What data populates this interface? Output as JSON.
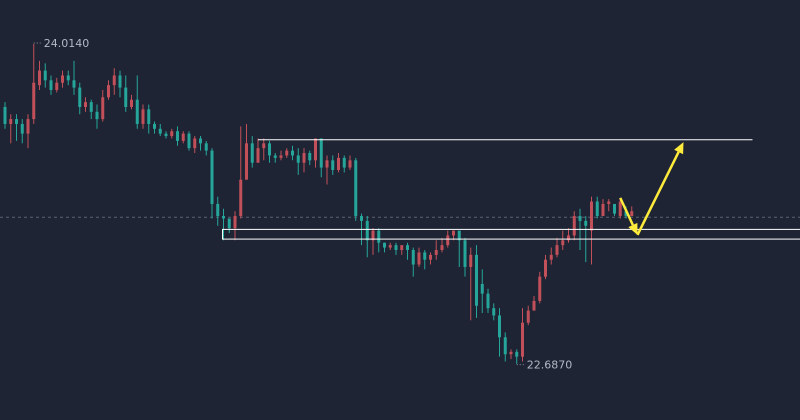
{
  "chart_data": {
    "type": "candlestick",
    "title": "",
    "xlabel": "",
    "ylabel": "",
    "ylim": [
      22.5,
      24.15
    ],
    "grid": false,
    "colors": {
      "up": "#c2505a",
      "down": "#26a69a",
      "background": "#1e2433",
      "annotation": "#ffeb3b",
      "line": "#ffffff"
    },
    "high_label": {
      "text": "24.0140",
      "index": 5,
      "value": 24.014
    },
    "low_label": {
      "text": "22.6870",
      "index": 89,
      "value": 22.687
    },
    "reference_line": {
      "value": 23.295,
      "style": "dashed"
    },
    "resistance_line": {
      "value": 23.615,
      "from_index": 44,
      "to_index": 130
    },
    "support_zone": {
      "low": 23.205,
      "high": 23.245,
      "from_index": 38
    },
    "annotation_arrows": [
      {
        "from": [
          107,
          23.375
        ],
        "to": [
          110,
          23.222
        ]
      },
      {
        "from": [
          110,
          23.222
        ],
        "to": [
          118,
          23.605
        ]
      }
    ],
    "candles": [
      [
        23.75,
        23.68,
        23.77,
        23.66
      ],
      [
        23.68,
        23.7,
        23.72,
        23.6
      ],
      [
        23.7,
        23.68,
        23.72,
        23.61
      ],
      [
        23.68,
        23.64,
        23.7,
        23.6
      ],
      [
        23.64,
        23.7,
        23.72,
        23.58
      ],
      [
        23.7,
        23.85,
        24.01,
        23.68
      ],
      [
        23.84,
        23.9,
        23.94,
        23.82
      ],
      [
        23.9,
        23.86,
        23.93,
        23.83
      ],
      [
        23.86,
        23.82,
        23.88,
        23.8
      ],
      [
        23.82,
        23.85,
        23.87,
        23.81
      ],
      [
        23.85,
        23.88,
        23.9,
        23.83
      ],
      [
        23.88,
        23.86,
        23.9,
        23.84
      ],
      [
        23.86,
        23.83,
        23.94,
        23.8
      ],
      [
        23.83,
        23.75,
        23.85,
        23.72
      ],
      [
        23.75,
        23.77,
        23.79,
        23.73
      ],
      [
        23.77,
        23.73,
        23.78,
        23.7
      ],
      [
        23.73,
        23.7,
        23.76,
        23.66
      ],
      [
        23.7,
        23.79,
        23.82,
        23.69
      ],
      [
        23.79,
        23.84,
        23.86,
        23.78
      ],
      [
        23.84,
        23.88,
        23.91,
        23.8
      ],
      [
        23.88,
        23.83,
        23.9,
        23.79
      ],
      [
        23.83,
        23.75,
        23.88,
        23.73
      ],
      [
        23.75,
        23.78,
        23.8,
        23.74
      ],
      [
        23.78,
        23.68,
        23.88,
        23.66
      ],
      [
        23.68,
        23.74,
        23.76,
        23.66
      ],
      [
        23.74,
        23.68,
        23.76,
        23.64
      ],
      [
        23.68,
        23.66,
        23.69,
        23.64
      ],
      [
        23.66,
        23.64,
        23.68,
        23.63
      ],
      [
        23.64,
        23.63,
        23.65,
        23.62
      ],
      [
        23.63,
        23.65,
        23.66,
        23.62
      ],
      [
        23.65,
        23.61,
        23.67,
        23.59
      ],
      [
        23.61,
        23.64,
        23.65,
        23.6
      ],
      [
        23.64,
        23.58,
        23.65,
        23.57
      ],
      [
        23.58,
        23.62,
        23.63,
        23.56
      ],
      [
        23.62,
        23.6,
        23.63,
        23.57
      ],
      [
        23.6,
        23.57,
        23.61,
        23.55
      ],
      [
        23.57,
        23.35,
        23.58,
        23.29
      ],
      [
        23.35,
        23.3,
        23.38,
        23.26
      ],
      [
        23.3,
        23.29,
        23.33,
        23.2
      ],
      [
        23.29,
        23.25,
        23.29,
        23.23
      ],
      [
        23.25,
        23.3,
        23.32,
        23.2
      ],
      [
        23.3,
        23.45,
        23.67,
        23.29
      ],
      [
        23.45,
        23.6,
        23.68,
        23.5
      ],
      [
        23.6,
        23.52,
        23.63,
        23.5
      ],
      [
        23.52,
        23.58,
        23.62,
        23.52
      ],
      [
        23.58,
        23.6,
        23.62,
        23.53
      ],
      [
        23.6,
        23.55,
        23.61,
        23.52
      ],
      [
        23.55,
        23.54,
        23.56,
        23.52
      ],
      [
        23.54,
        23.55,
        23.57,
        23.53
      ],
      [
        23.55,
        23.57,
        23.58,
        23.54
      ],
      [
        23.57,
        23.55,
        23.59,
        23.53
      ],
      [
        23.55,
        23.52,
        23.58,
        23.47
      ],
      [
        23.52,
        23.56,
        23.58,
        23.48
      ],
      [
        23.56,
        23.53,
        23.57,
        23.51
      ],
      [
        23.53,
        23.62,
        23.62,
        23.5
      ],
      [
        23.62,
        23.5,
        23.62,
        23.46
      ],
      [
        23.5,
        23.53,
        23.55,
        23.43
      ],
      [
        23.53,
        23.49,
        23.55,
        23.47
      ],
      [
        23.49,
        23.54,
        23.56,
        23.48
      ],
      [
        23.54,
        23.5,
        23.55,
        23.48
      ],
      [
        23.5,
        23.53,
        23.55,
        23.49
      ],
      [
        23.53,
        23.3,
        23.54,
        23.28
      ],
      [
        23.3,
        23.28,
        23.31,
        23.18
      ],
      [
        23.28,
        23.2,
        23.3,
        23.13
      ],
      [
        23.2,
        23.24,
        23.25,
        23.14
      ],
      [
        23.24,
        23.19,
        23.25,
        23.15
      ],
      [
        23.19,
        23.17,
        23.19,
        23.15
      ],
      [
        23.17,
        23.18,
        23.19,
        23.16
      ],
      [
        23.18,
        23.16,
        23.19,
        23.14
      ],
      [
        23.16,
        23.18,
        23.18,
        23.14
      ],
      [
        23.18,
        23.16,
        23.19,
        23.12
      ],
      [
        23.16,
        23.1,
        23.17,
        23.05
      ],
      [
        23.1,
        23.15,
        23.17,
        23.09
      ],
      [
        23.15,
        23.12,
        23.16,
        23.08
      ],
      [
        23.12,
        23.14,
        23.15,
        23.1
      ],
      [
        23.14,
        23.16,
        23.2,
        23.12
      ],
      [
        23.16,
        23.18,
        23.21,
        23.15
      ],
      [
        23.18,
        23.22,
        23.24,
        23.17
      ],
      [
        23.22,
        23.24,
        23.24,
        23.2
      ],
      [
        23.24,
        23.2,
        23.23,
        23.09
      ],
      [
        23.2,
        23.09,
        23.21,
        23.05
      ],
      [
        23.09,
        23.14,
        23.17,
        22.87
      ],
      [
        23.14,
        22.93,
        23.18,
        22.88
      ],
      [
        23.02,
        22.98,
        23.08,
        22.9
      ],
      [
        22.98,
        22.92,
        23.0,
        22.9
      ],
      [
        22.92,
        22.89,
        22.94,
        22.87
      ],
      [
        22.89,
        22.8,
        22.92,
        22.72
      ],
      [
        22.8,
        22.73,
        22.82,
        22.7
      ],
      [
        22.73,
        22.74,
        22.75,
        22.71
      ],
      [
        22.74,
        22.72,
        22.75,
        22.69
      ],
      [
        22.72,
        22.86,
        22.92,
        22.7
      ],
      [
        22.86,
        22.91,
        22.93,
        22.85
      ],
      [
        22.91,
        22.95,
        22.97,
        22.92
      ],
      [
        22.95,
        23.05,
        23.07,
        22.94
      ],
      [
        23.05,
        23.12,
        23.14,
        23.04
      ],
      [
        23.12,
        23.14,
        23.17,
        23.1
      ],
      [
        23.14,
        23.18,
        23.21,
        23.13
      ],
      [
        23.18,
        23.2,
        23.24,
        23.16
      ],
      [
        23.2,
        23.22,
        23.25,
        23.19
      ],
      [
        23.22,
        23.3,
        23.32,
        23.2
      ],
      [
        23.3,
        23.28,
        23.33,
        23.16
      ],
      [
        23.28,
        23.26,
        23.3,
        23.11
      ],
      [
        23.24,
        23.36,
        23.38,
        23.1
      ],
      [
        23.36,
        23.3,
        23.38,
        23.29
      ],
      [
        23.3,
        23.35,
        23.37,
        23.31
      ],
      [
        23.35,
        23.36,
        23.37,
        23.32
      ],
      [
        23.35,
        23.31,
        23.35,
        23.3
      ],
      [
        23.3,
        23.36,
        23.37,
        23.29
      ],
      [
        23.32,
        23.3,
        23.34,
        23.29
      ],
      [
        23.3,
        23.32,
        23.34,
        23.3
      ]
    ]
  }
}
